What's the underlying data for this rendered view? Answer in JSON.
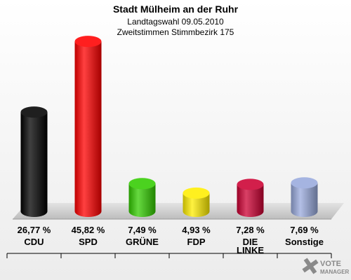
{
  "chart_data": {
    "type": "bar",
    "title": "Stadt Mülheim an der Ruhr",
    "subtitle_1": "Landtagswahl 09.05.2010",
    "subtitle_2": "Zweitstimmen Stimmbezirk 175",
    "ylim": [
      0,
      50
    ],
    "categories": [
      "CDU",
      "SPD",
      "GRÜNE",
      "FDP",
      "DIE LINKE",
      "Sonstige"
    ],
    "values": [
      26.77,
      45.82,
      7.49,
      4.93,
      7.28,
      7.69
    ],
    "value_labels": [
      "26,77 %",
      "45,82 %",
      "7,49 %",
      "4,93 %",
      "7,28 %",
      "7,69 %"
    ],
    "colors": [
      "#000000",
      "#ff0000",
      "#33cc00",
      "#ffee00",
      "#cc0033",
      "#99aadd"
    ],
    "logo_text": [
      "VOTE",
      "MANAGER"
    ]
  }
}
